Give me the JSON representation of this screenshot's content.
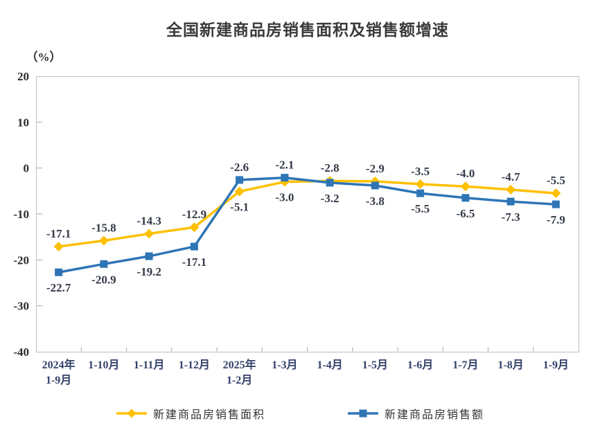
{
  "title": "全国新建商品房销售面积及销售额增速",
  "unit_label": "（%）",
  "chart_data": {
    "type": "line",
    "categories": [
      "2024年\n1-9月",
      "1-10月",
      "1-11月",
      "1-12月",
      "2025年\n1-2月",
      "1-3月",
      "1-4月",
      "1-5月",
      "1-6月",
      "1-7月",
      "1-8月",
      "1-9月"
    ],
    "series": [
      {
        "name": "新建商品房销售面积",
        "marker": "diamond",
        "color": "#FFC000",
        "values": [
          -17.1,
          -15.8,
          -14.3,
          -12.9,
          -5.1,
          -3.0,
          -2.8,
          -2.9,
          -3.5,
          -4.0,
          -4.7,
          -5.5
        ]
      },
      {
        "name": "新建商品房销售额",
        "marker": "square",
        "color": "#2E75B6",
        "values": [
          -22.7,
          -20.9,
          -19.2,
          -17.1,
          -2.6,
          -2.1,
          -3.2,
          -3.8,
          -5.5,
          -6.5,
          -7.3,
          -7.9
        ]
      }
    ],
    "ylim": [
      -40,
      20
    ],
    "ytick_step": 10,
    "yticks": [
      "20",
      "10",
      "0",
      "-10",
      "-20",
      "-30",
      "-40"
    ],
    "grid": false,
    "legend_position": "bottom",
    "axis_border_color": "#bfbfbf",
    "tick_color": "#a6a6a6"
  }
}
